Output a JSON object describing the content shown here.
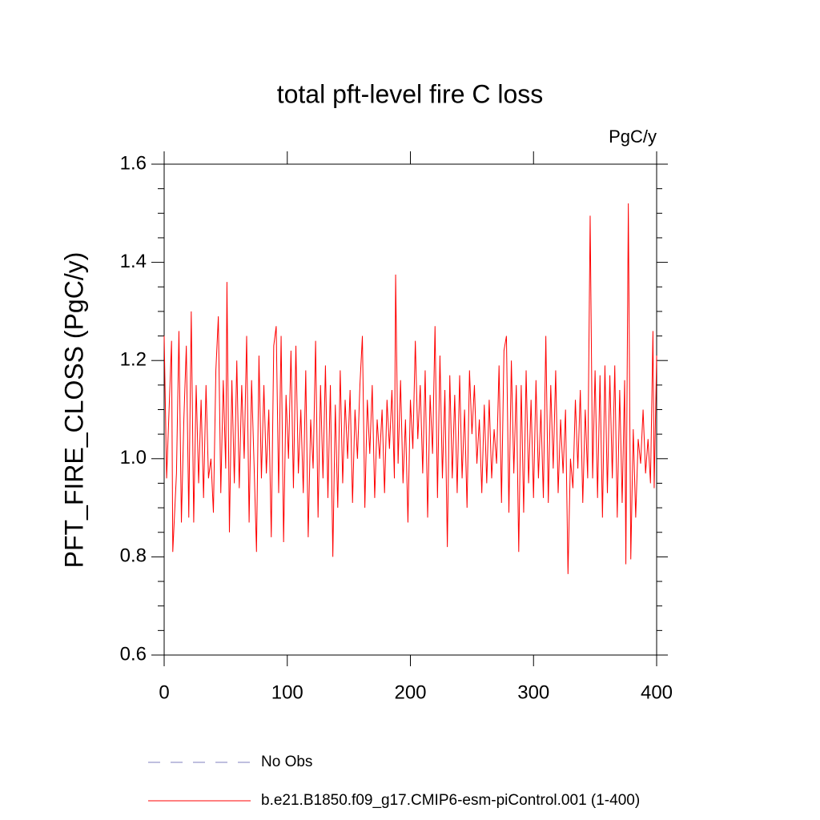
{
  "chart_data": {
    "type": "line",
    "title": "total pft-level fire C loss",
    "units": "PgC/y",
    "y_label": "PFT_FIRE_CLOSS  (PgC/y)",
    "xlim": [
      0,
      400
    ],
    "ylim": [
      0.6,
      1.6
    ],
    "xticks": [
      0,
      100,
      200,
      300,
      400
    ],
    "yticks": [
      {
        "value": 0.6,
        "label": "0.6"
      },
      {
        "value": 0.8,
        "label": "0.8"
      },
      {
        "value": 1,
        "label": "1.0"
      },
      {
        "value": 1.2,
        "label": "1.2"
      },
      {
        "value": 1.4,
        "label": "1.4"
      },
      {
        "value": 1.6,
        "label": "1.6"
      }
    ],
    "yminorticks": [
      0.65,
      0.7,
      0.75,
      0.85,
      0.9,
      0.95,
      1.05,
      1.1,
      1.15,
      1.25,
      1.3,
      1.35,
      1.45,
      1.5,
      1.55
    ],
    "x": [
      0,
      2,
      4,
      6,
      7,
      10,
      12,
      14,
      16,
      18,
      20,
      22,
      24,
      26,
      28,
      30,
      32,
      34,
      36,
      38,
      40,
      42,
      44,
      46,
      48,
      50,
      51,
      53,
      55,
      57,
      59,
      61,
      63,
      65,
      67,
      69,
      71,
      73,
      75,
      77,
      79,
      81,
      83,
      85,
      87,
      89,
      91,
      93,
      95,
      97,
      99,
      101,
      103,
      105,
      107,
      109,
      111,
      113,
      115,
      117,
      119,
      121,
      123,
      125,
      127,
      129,
      131,
      133,
      135,
      137,
      139,
      141,
      143,
      145,
      147,
      149,
      151,
      153,
      155,
      157,
      159,
      161,
      163,
      165,
      167,
      169,
      171,
      173,
      175,
      177,
      179,
      181,
      183,
      185,
      187,
      188,
      190,
      192,
      194,
      196,
      198,
      200,
      202,
      204,
      206,
      208,
      210,
      212,
      214,
      216,
      218,
      220,
      222,
      224,
      226,
      228,
      230,
      232,
      234,
      236,
      238,
      240,
      242,
      244,
      246,
      248,
      250,
      252,
      254,
      256,
      258,
      260,
      262,
      264,
      266,
      268,
      270,
      272,
      274,
      276,
      278,
      280,
      282,
      284,
      286,
      288,
      290,
      292,
      294,
      296,
      298,
      300,
      302,
      304,
      306,
      308,
      310,
      312,
      314,
      316,
      318,
      320,
      322,
      324,
      326,
      328,
      330,
      332,
      334,
      336,
      338,
      340,
      342,
      344,
      346,
      348,
      350,
      352,
      354,
      356,
      358,
      360,
      362,
      364,
      366,
      368,
      370,
      372,
      374,
      375,
      377,
      379,
      381,
      383,
      385,
      387,
      389,
      391,
      393,
      395,
      397,
      398,
      400
    ],
    "series": [
      {
        "name": "No Obs",
        "color": "#7f7fbf",
        "dashed": true
      },
      {
        "name": "b.e21.B1850.f09_g17.CMIP6-esm-piControl.001 (1-400)",
        "color": "#ff0000",
        "dashed": false,
        "values": [
          1.25,
          0.96,
          1.1,
          1.24,
          0.81,
          0.97,
          1.26,
          0.87,
          1.08,
          1.23,
          0.88,
          1.3,
          0.87,
          1.15,
          0.95,
          1.12,
          0.92,
          1.15,
          0.96,
          1.0,
          0.89,
          1.18,
          1.29,
          0.93,
          1.16,
          0.98,
          1.36,
          0.85,
          1.16,
          0.95,
          1.2,
          0.94,
          1.15,
          1.0,
          1.25,
          0.87,
          1.16,
          0.99,
          0.81,
          1.21,
          0.96,
          1.15,
          0.97,
          1.1,
          0.84,
          1.23,
          1.27,
          0.93,
          1.25,
          0.83,
          1.13,
          1.0,
          1.22,
          0.94,
          1.23,
          0.97,
          1.1,
          0.93,
          1.18,
          0.84,
          1.08,
          0.98,
          1.24,
          0.88,
          1.15,
          0.96,
          1.19,
          0.92,
          1.15,
          0.8,
          1.11,
          0.9,
          1.18,
          0.95,
          1.12,
          1.0,
          1.14,
          0.91,
          1.1,
          1.0,
          1.15,
          1.25,
          0.9,
          1.12,
          1.01,
          1.15,
          0.92,
          1.08,
          1.0,
          1.1,
          0.93,
          1.12,
          1.02,
          1.14,
          0.96,
          1.375,
          0.99,
          1.16,
          0.95,
          1.08,
          0.87,
          1.12,
          1.02,
          1.24,
          1.04,
          1.15,
          0.97,
          1.18,
          0.88,
          1.13,
          1.01,
          1.27,
          0.92,
          1.21,
          0.96,
          1.14,
          0.82,
          1.17,
          0.96,
          1.13,
          0.93,
          1.17,
          0.96,
          1.1,
          0.9,
          1.18,
          1.05,
          1.15,
          0.99,
          1.08,
          0.93,
          1.11,
          0.95,
          1.12,
          0.96,
          1.06,
          0.99,
          1.19,
          0.91,
          1.22,
          1.25,
          0.89,
          1.2,
          0.97,
          1.15,
          0.81,
          1.15,
          0.89,
          1.18,
          0.95,
          1.12,
          0.92,
          1.16,
          0.96,
          1.1,
          0.92,
          1.25,
          0.91,
          1.15,
          0.98,
          1.18,
          0.93,
          1.08,
          0.97,
          1.1,
          0.765,
          1.0,
          0.94,
          1.12,
          0.98,
          1.14,
          0.91,
          1.1,
          0.96,
          1.495,
          0.96,
          1.18,
          0.92,
          1.17,
          0.88,
          1.19,
          0.93,
          1.17,
          0.96,
          1.19,
          0.88,
          1.14,
          0.91,
          1.16,
          0.785,
          1.52,
          0.795,
          1.06,
          0.88,
          1.04,
          0.99,
          1.1,
          0.97,
          1.04,
          0.95,
          1.26,
          0.94,
          1.21
        ]
      }
    ]
  }
}
